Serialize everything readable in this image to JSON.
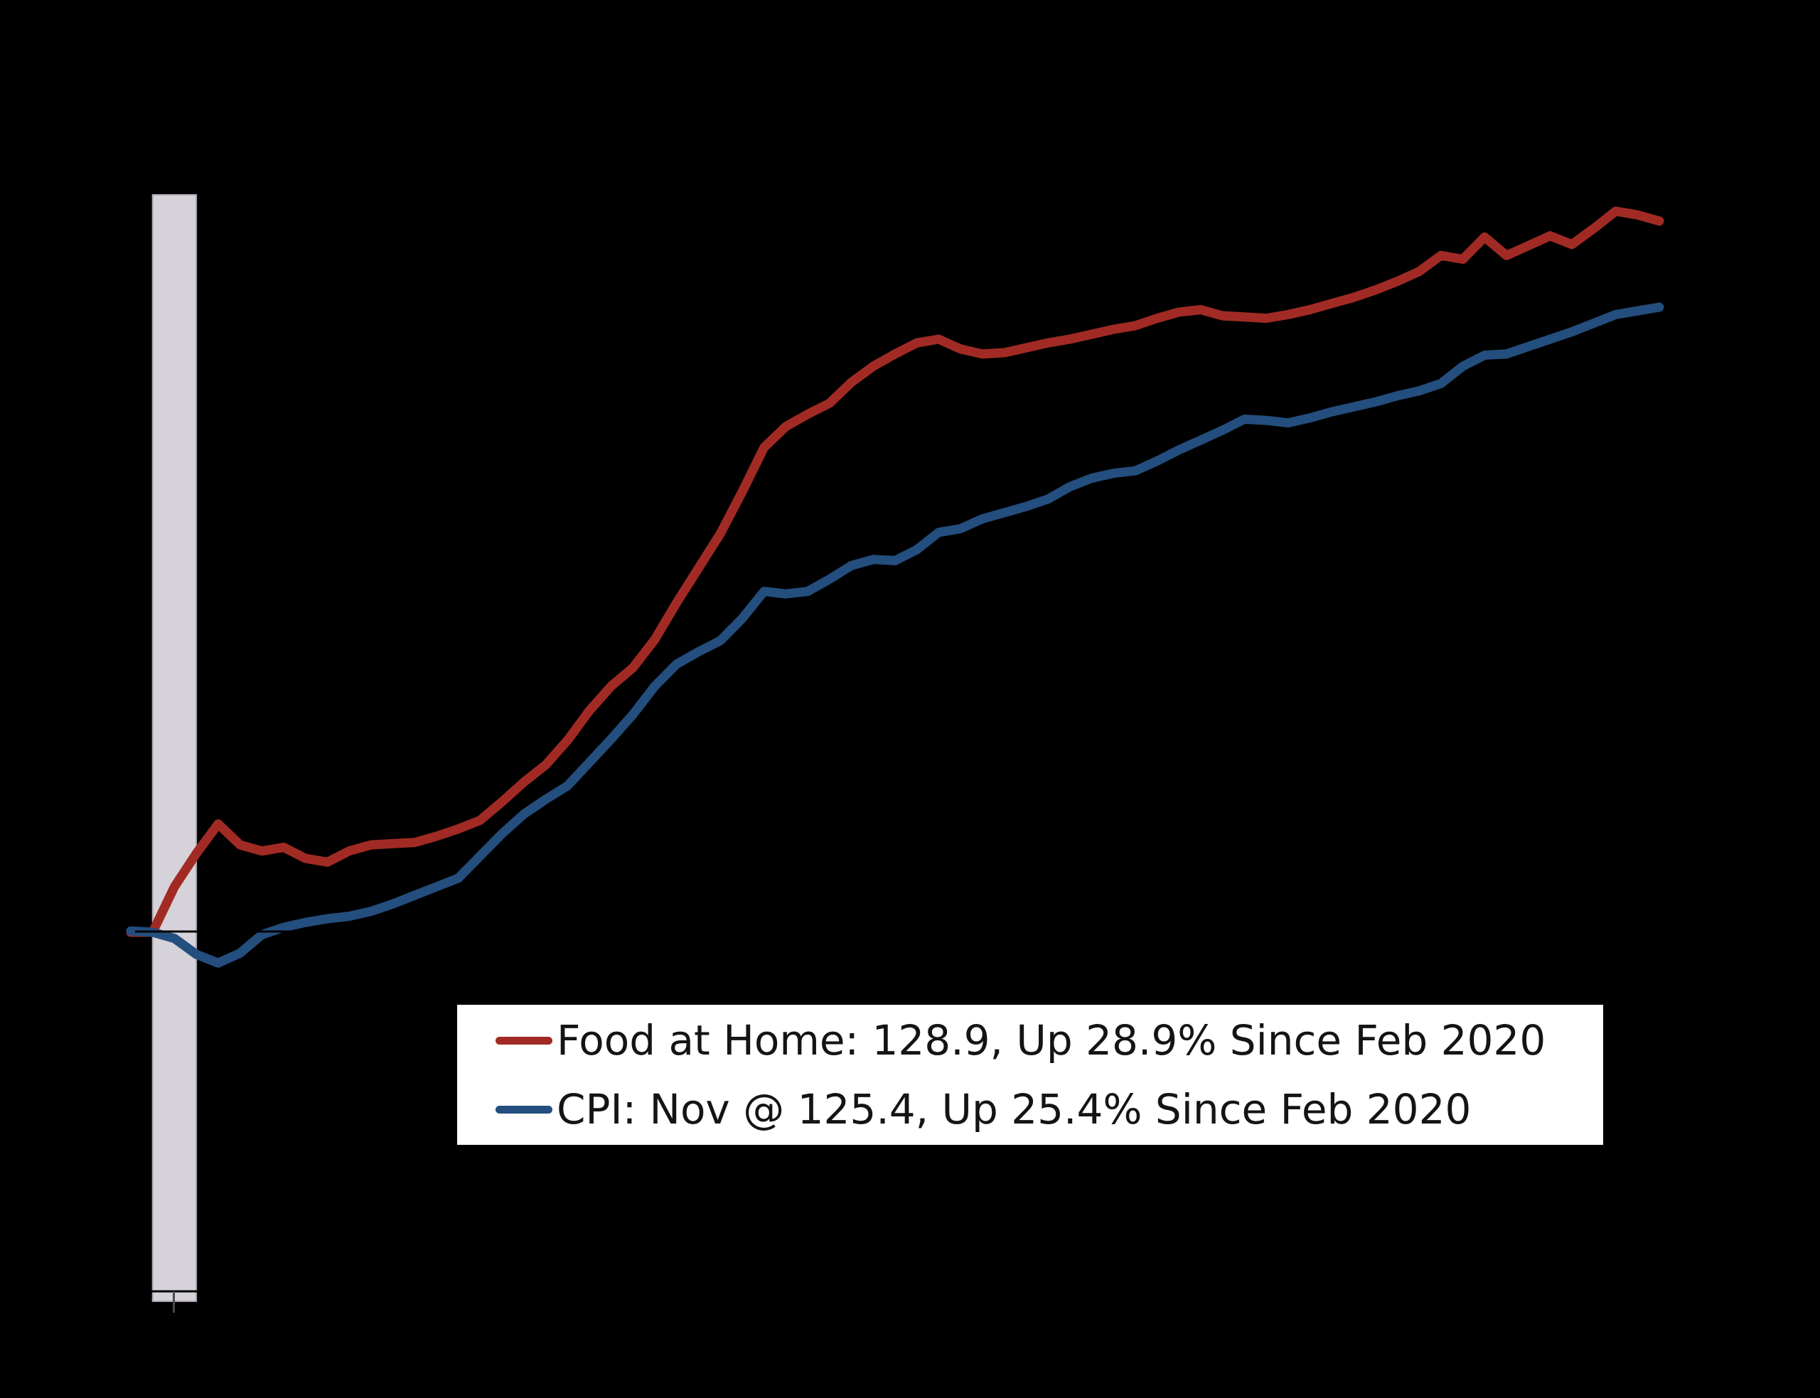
{
  "canvas": {
    "background": "#000000"
  },
  "legend": {
    "background": "#ffffff",
    "items": [
      {
        "label": "Food at Home: 128.9, Up 28.9% Since Feb 2020",
        "color": "#A12B24"
      },
      {
        "label": "CPI: Nov @ 125.4, Up 25.4% Since Feb 2020",
        "color": "#234E7E"
      }
    ]
  },
  "chart_data": {
    "type": "line",
    "title": "",
    "xlabel": "",
    "ylabel": "",
    "x_unit": "month",
    "baseline_value": 100,
    "ylim": [
      85,
      130
    ],
    "grid": false,
    "legend_position": "bottom-center",
    "recession_band": {
      "start": "2020-02",
      "end": "2020-04",
      "fill": "#D6D2D9",
      "border": "#ACA6B1"
    },
    "axis_color": "#000000",
    "baseline_color": "#000000",
    "tick_color": "#4a4a4a",
    "months": [
      "2020-01",
      "2020-02",
      "2020-03",
      "2020-04",
      "2020-05",
      "2020-06",
      "2020-07",
      "2020-08",
      "2020-09",
      "2020-10",
      "2020-11",
      "2020-12",
      "2021-01",
      "2021-02",
      "2021-03",
      "2021-04",
      "2021-05",
      "2021-06",
      "2021-07",
      "2021-08",
      "2021-09",
      "2021-10",
      "2021-11",
      "2021-12",
      "2022-01",
      "2022-02",
      "2022-03",
      "2022-04",
      "2022-05",
      "2022-06",
      "2022-07",
      "2022-08",
      "2022-09",
      "2022-10",
      "2022-11",
      "2022-12",
      "2023-01",
      "2023-02",
      "2023-03",
      "2023-04",
      "2023-05",
      "2023-06",
      "2023-07",
      "2023-08",
      "2023-09",
      "2023-10",
      "2023-11",
      "2023-12",
      "2024-01",
      "2024-02",
      "2024-03",
      "2024-04",
      "2024-05",
      "2024-06",
      "2024-07",
      "2024-08",
      "2024-09",
      "2024-10",
      "2024-11",
      "2024-12",
      "2025-01",
      "2025-02",
      "2025-03",
      "2025-04",
      "2025-05",
      "2025-06",
      "2025-07",
      "2025-08",
      "2025-09",
      "2025-10",
      "2025-11"
    ],
    "series": [
      {
        "name": "Food at Home",
        "color": "#A12B24",
        "last_label": "Food at Home: 128.9, Up 28.9% Since Feb 2020",
        "values": [
          100.0,
          100.0,
          101.85,
          103.2,
          104.4,
          103.55,
          103.3,
          103.45,
          103.0,
          102.85,
          103.3,
          103.55,
          103.6,
          103.65,
          103.9,
          104.2,
          104.55,
          105.3,
          106.1,
          106.8,
          107.8,
          109.0,
          110.0,
          110.75,
          111.9,
          113.4,
          114.8,
          116.2,
          117.9,
          119.7,
          120.55,
          121.05,
          121.5,
          122.35,
          123.0,
          123.5,
          123.95,
          124.1,
          123.7,
          123.5,
          123.55,
          123.75,
          123.95,
          124.1,
          124.3,
          124.5,
          124.65,
          124.95,
          125.2,
          125.3,
          125.05,
          125.0,
          124.95,
          125.1,
          125.3,
          125.55,
          125.8,
          126.1,
          126.45,
          126.85,
          127.5,
          127.35,
          128.25,
          127.5,
          127.9,
          128.3,
          127.95,
          128.6,
          129.3,
          129.15,
          128.9
        ]
      },
      {
        "name": "CPI",
        "color": "#234E7E",
        "last_label": "CPI: Nov @ 125.4, Up 25.4% Since Feb 2020",
        "values": [
          100.05,
          100.0,
          99.75,
          99.1,
          98.75,
          99.15,
          99.9,
          100.2,
          100.4,
          100.55,
          100.65,
          100.85,
          101.15,
          101.5,
          101.85,
          102.2,
          103.1,
          104.0,
          104.8,
          105.4,
          105.95,
          106.9,
          107.85,
          108.85,
          110.0,
          110.9,
          111.4,
          111.85,
          112.75,
          113.85,
          113.75,
          113.85,
          114.35,
          114.9,
          115.15,
          115.1,
          115.55,
          116.25,
          116.4,
          116.8,
          117.05,
          117.3,
          117.6,
          118.1,
          118.45,
          118.65,
          118.75,
          119.15,
          119.6,
          120.0,
          120.4,
          120.85,
          120.8,
          120.7,
          120.9,
          121.15,
          121.35,
          121.55,
          121.8,
          122.0,
          122.3,
          123.0,
          123.45,
          123.5,
          123.8,
          124.1,
          124.4,
          124.75,
          125.1,
          125.25,
          125.4
        ]
      }
    ]
  }
}
